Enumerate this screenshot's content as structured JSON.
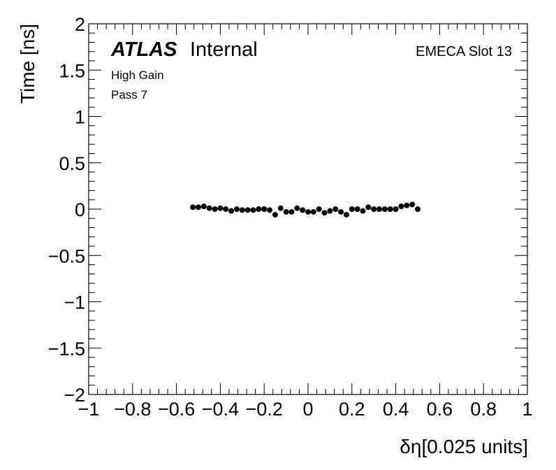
{
  "chart_data": {
    "type": "scatter",
    "title": "",
    "xlabel": "δη[0.025 units]",
    "ylabel": "Time [ns]",
    "xlim": [
      -1,
      1
    ],
    "ylim": [
      -2,
      2
    ],
    "x_ticks": [
      -1,
      -0.8,
      -0.6,
      -0.4,
      -0.2,
      0,
      0.2,
      0.4,
      0.6,
      0.8,
      1
    ],
    "x_tick_labels": [
      "−1",
      "−0.8",
      "−0.6",
      "−0.4",
      "−0.2",
      "0",
      "0.2",
      "0.4",
      "0.6",
      "0.8",
      "1"
    ],
    "y_ticks": [
      -2,
      -1.5,
      -1,
      -0.5,
      0,
      0.5,
      1,
      1.5,
      2
    ],
    "y_tick_labels": [
      "−2",
      "−1.5",
      "−1",
      "−0.5",
      "0",
      "0.5",
      "1",
      "1.5",
      "2"
    ],
    "grid": false,
    "marker_color": "#000000",
    "series": [
      {
        "x": [
          -0.525,
          -0.5,
          -0.475,
          -0.45,
          -0.425,
          -0.4,
          -0.375,
          -0.35,
          -0.325,
          -0.3,
          -0.275,
          -0.25,
          -0.225,
          -0.2,
          -0.175,
          -0.15,
          -0.125,
          -0.1,
          -0.075,
          -0.05,
          -0.025,
          0.0,
          0.025,
          0.05,
          0.075,
          0.1,
          0.125,
          0.15,
          0.175,
          0.2,
          0.225,
          0.25,
          0.275,
          0.3,
          0.325,
          0.35,
          0.375,
          0.4,
          0.425,
          0.45,
          0.475,
          0.5
        ],
        "y": [
          0.02,
          0.02,
          0.03,
          0.01,
          0.0,
          0.01,
          0.0,
          -0.02,
          0.0,
          -0.01,
          -0.01,
          -0.01,
          0.0,
          0.0,
          -0.01,
          -0.06,
          0.01,
          -0.03,
          -0.03,
          0.01,
          -0.01,
          -0.03,
          -0.03,
          0.0,
          -0.04,
          -0.02,
          0.0,
          -0.03,
          -0.06,
          0.0,
          0.0,
          -0.02,
          0.02,
          0.0,
          0.0,
          0.0,
          0.0,
          0.0,
          0.03,
          0.04,
          0.05,
          0.0
        ]
      }
    ]
  },
  "annotations": {
    "atlas": "ATLAS",
    "internal": "Internal",
    "slot": "EMECA Slot 13",
    "gain": "High Gain",
    "pass": "Pass 7"
  }
}
